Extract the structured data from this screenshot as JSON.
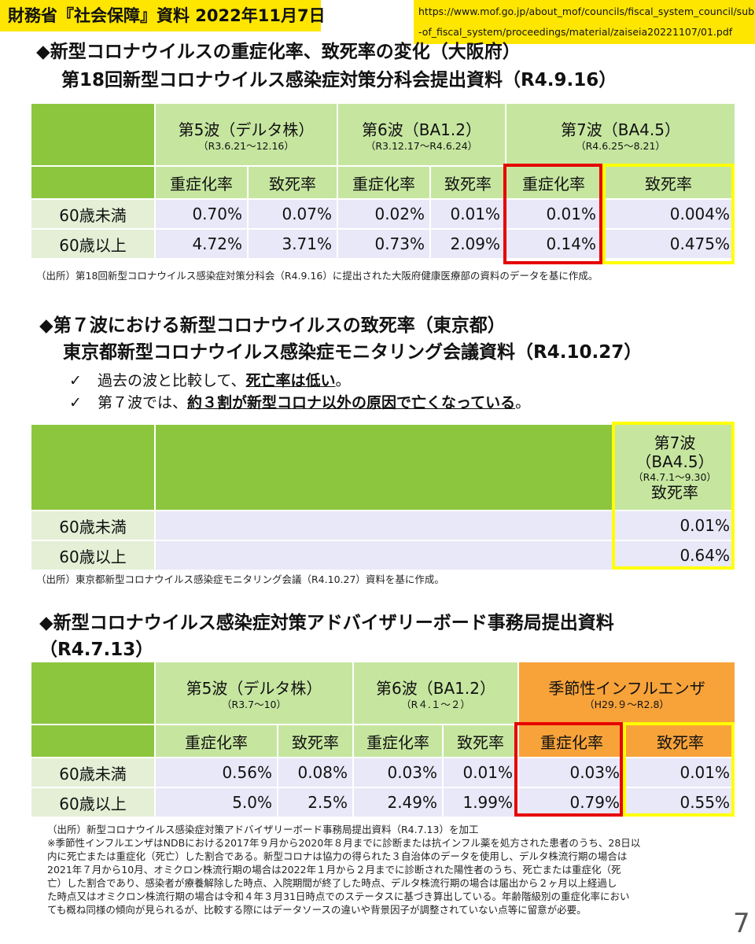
{
  "banner": "財務省『社会保障』資料 2022年11月7日",
  "url": [
    "https://www.mof.go.jp/about_mof/councils/fiscal_system_council/sub",
    "-of_fiscal_system/proceedings/material/zaiseia20221107/01.pdf"
  ],
  "s1": {
    "heading1": "◆新型コロナウイルスの重症化率、致死率の変化（大阪府）",
    "heading2": "第18回新型コロナウイルス感染症対策分科会提出資料（R4.9.16）",
    "waves": [
      {
        "name": "第5波（デルタ株）",
        "period": "（R3.6.21～12.16）"
      },
      {
        "name": "第6波（BA1.2）",
        "period": "（R3.12.17～R4.6.24）"
      },
      {
        "name": "第7波（BA4.5）",
        "period": "（R4.6.25～8.21）"
      }
    ],
    "metrics": [
      "重症化率",
      "致死率",
      "重症化率",
      "致死率",
      "重症化率",
      "致死率"
    ],
    "rows": [
      {
        "label": "60歳未満",
        "values": [
          "0.70%",
          "0.07%",
          "0.02%",
          "0.01%",
          "0.01%",
          "0.004%"
        ]
      },
      {
        "label": "60歳以上",
        "values": [
          "4.72%",
          "3.71%",
          "0.73%",
          "2.09%",
          "0.14%",
          "0.475%"
        ]
      }
    ],
    "source": "（出所）第18回新型コロナウイルス感染症対策分科会（R4.9.16）に提出された大阪府健康医療部の資料のデータを基に作成。"
  },
  "s2": {
    "heading1": "◆第７波における新型コロナウイルスの致死率（東京都）",
    "heading2": "東京都新型コロナウイルス感染症モニタリング会議資料（R4.10.27）",
    "check_mark": "✓",
    "check1_a": "過去の波と比較して、",
    "check1_b": "死亡率は低い",
    "check1_c": "。",
    "check2_a": "第７波では、",
    "check2_b": "約３割が新型コロナ以外の原因で亡くなっている",
    "check2_c": "。",
    "wave_l1": "第7波",
    "wave_l2": "（BA4.5）",
    "wave_period": "（R4.7.1～9.30）",
    "metric": "致死率",
    "rows": [
      {
        "label": "60歳未満",
        "value": "0.01%"
      },
      {
        "label": "60歳以上",
        "value": "0.64%"
      }
    ],
    "source": "（出所）東京都新型コロナウイルス感染症モニタリング会議（R4.10.27）資料を基に作成。"
  },
  "s3": {
    "heading1": "◆新型コロナウイルス感染症対策アドバイザリーボード事務局提出資料",
    "heading2": "（R4.7.13）",
    "waves": [
      {
        "name": "第5波（デルタ株）",
        "period": "（R3.7～10）"
      },
      {
        "name": "第6波（BA1.2）",
        "period": "（R４.１～２）"
      },
      {
        "name": "季節性インフルエンザ",
        "period": "（H29.９～R2.8）"
      }
    ],
    "metrics": [
      "重症化率",
      "致死率",
      "重症化率",
      "致死率",
      "重症化率",
      "致死率"
    ],
    "rows": [
      {
        "label": "60歳未満",
        "values": [
          "0.56%",
          "0.08%",
          "0.03%",
          "0.01%",
          "0.03%",
          "0.01%"
        ]
      },
      {
        "label": "60歳以上",
        "values": [
          "5.0%",
          "2.5%",
          "2.49%",
          "1.99%",
          "0.79%",
          "0.55%"
        ]
      }
    ],
    "notes": [
      "（出所）新型コロナウイルス感染症対策アドバイザリーボード事務局提出資料（R4.7.13）を加工",
      "※季節性インフルエンザはNDBにおける2017年９月から2020年８月までに診断または抗インフル薬を処方された患者のうち、28日以",
      "内に死亡または重症化（死亡）した割合である。新型コロナは協力の得られた３自治体のデータを使用し、デルタ株流行期の場合は",
      "2021年７月から10月、オミクロン株流行期の場合は2022年１月から２月までに診断された陽性者のうち、死亡または重症化（死",
      "亡）した割合であり、感染者が療養解除した時点、入院期間が終了した時点、デルタ株流行期の場合は届出から２ヶ月以上経過し",
      "た時点又はオミクロン株流行期の場合は令和４年３月31日時点でのステータスに基づき算出している。年齢階級別の重症化率におい",
      "ても概ね同様の傾向が見られるが、比較する際にはデータソースの違いや背景因子が調整されていない点等に留意が必要。"
    ]
  },
  "page_number": "7",
  "colors": {
    "green": "#8cc63f",
    "light_green": "#c6e6a0",
    "orange": "#f7a33a",
    "value_bg": "#e8e8f8",
    "red_box": "#e60000",
    "yellow_box": "#ffff00",
    "banner": "#ffe600"
  }
}
